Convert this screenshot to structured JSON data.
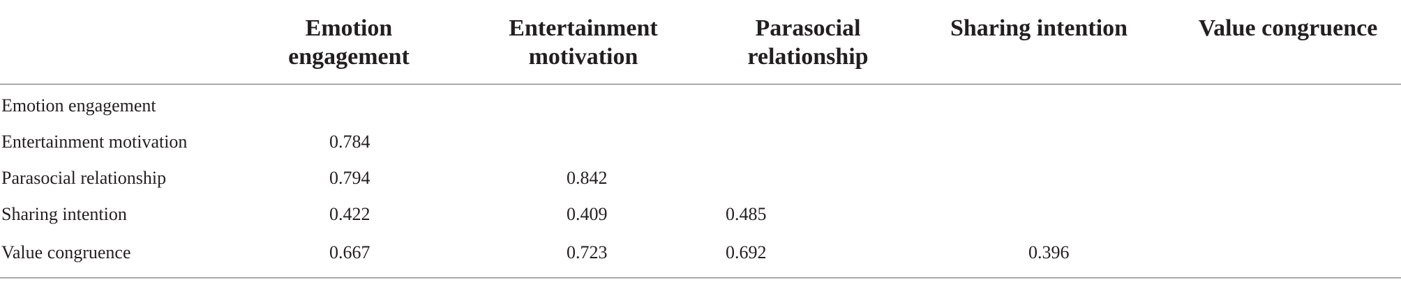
{
  "table": {
    "columns": [
      "",
      "Emotion engagement",
      "Entertainment motivation",
      "Parasocial relationship",
      "Sharing intention",
      "Value congruence"
    ],
    "rows": [
      {
        "label": "Emotion engagement",
        "values": [
          "",
          "",
          "",
          "",
          ""
        ]
      },
      {
        "label": "Entertainment motivation",
        "values": [
          "0.784",
          "",
          "",
          "",
          ""
        ]
      },
      {
        "label": "Parasocial relationship",
        "values": [
          "0.794",
          "0.842",
          "",
          "",
          ""
        ]
      },
      {
        "label": "Sharing intention",
        "values": [
          "0.422",
          "0.409",
          "0.485",
          "",
          ""
        ]
      },
      {
        "label": "Value congruence",
        "values": [
          "0.667",
          "0.723",
          "0.692",
          "0.396",
          ""
        ]
      }
    ]
  }
}
